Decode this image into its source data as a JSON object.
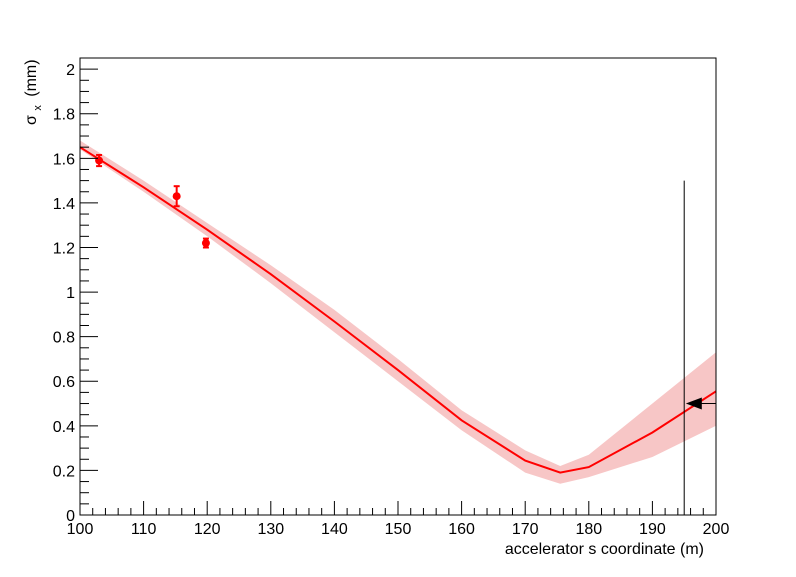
{
  "chart_data": {
    "type": "scatter",
    "title": "",
    "xlabel": "accelerator s coordinate (m)",
    "ylabel": {
      "symbol": "σ",
      "subscript": "x",
      "unit": "(mm)"
    },
    "xlim": [
      100,
      200
    ],
    "ylim": [
      0,
      2.05
    ],
    "x_ticks": [
      "100",
      "110",
      "120",
      "130",
      "140",
      "150",
      "160",
      "170",
      "180",
      "190",
      "200"
    ],
    "y_ticks": [
      "0",
      "0.2",
      "0.4",
      "0.6",
      "0.8",
      "1",
      "1.2",
      "1.4",
      "1.6",
      "1.8",
      "2"
    ],
    "grid": false,
    "legend": "none",
    "colors": {
      "data": "#ff0000",
      "fit_line": "#ff0000",
      "band": "#f7c6c6",
      "marker": "#000000",
      "frame": "#000000"
    },
    "series": [
      {
        "type": "scatter-errorbars",
        "points": [
          {
            "x": 103.0,
            "y": 1.59,
            "yerr": 0.025
          },
          {
            "x": 115.2,
            "y": 1.43,
            "yerr": 0.045
          },
          {
            "x": 119.8,
            "y": 1.22,
            "yerr": 0.02
          }
        ]
      },
      {
        "type": "line",
        "x": [
          100,
          110,
          120,
          130,
          140,
          150,
          160,
          170,
          175.5,
          180,
          190,
          200
        ],
        "y": [
          1.65,
          1.47,
          1.28,
          1.08,
          0.868,
          0.65,
          0.425,
          0.244,
          0.19,
          0.215,
          0.37,
          0.555
        ]
      },
      {
        "type": "band",
        "x": [
          100,
          110,
          120,
          130,
          140,
          150,
          160,
          170,
          175.5,
          180,
          190,
          200
        ],
        "y_low": [
          1.64,
          1.45,
          1.25,
          1.04,
          0.82,
          0.6,
          0.38,
          0.19,
          0.14,
          0.17,
          0.26,
          0.4
        ],
        "y_high": [
          1.68,
          1.5,
          1.31,
          1.12,
          0.92,
          0.7,
          0.47,
          0.29,
          0.22,
          0.27,
          0.5,
          0.73
        ]
      },
      {
        "type": "marker",
        "shape": "left-triangle",
        "point": {
          "x": 197.3,
          "y": 0.5
        },
        "hline_to_x": 200,
        "vline": {
          "x": 195,
          "y_top": 1.5
        }
      }
    ]
  }
}
